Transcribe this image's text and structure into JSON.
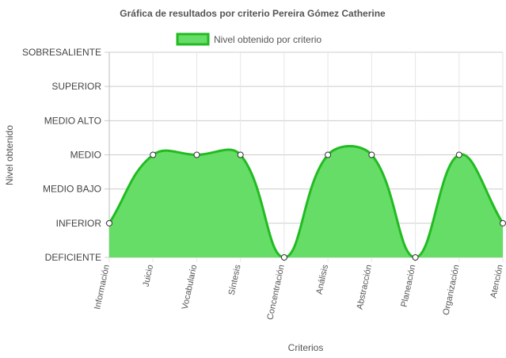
{
  "chart_data": {
    "type": "area",
    "title": "Gráfica de resultados por criterio Pereira Gómez Catherine",
    "xlabel": "Criterios",
    "ylabel": "Nivel obtenido",
    "y_levels": [
      "DEFICIENTE",
      "INFERIOR",
      "MEDIO BAJO",
      "MEDIO",
      "MEDIO ALTO",
      "SUPERIOR",
      "SOBRESALIENTE"
    ],
    "categories": [
      "Información",
      "Juicio",
      "Vocabulario",
      "Síntesis",
      "Concentración",
      "Análisis",
      "Abstracción",
      "Planeación",
      "Organización",
      "Atención"
    ],
    "series": [
      {
        "name": "Nivel obtenido por criterio",
        "values": [
          "INFERIOR",
          "MEDIO",
          "MEDIO",
          "MEDIO",
          "DEFICIENTE",
          "MEDIO",
          "MEDIO",
          "DEFICIENTE",
          "MEDIO",
          "INFERIOR"
        ],
        "fill_color": "#66dd66",
        "line_color": "#22bb22"
      }
    ],
    "grid": true,
    "legend_position": "top-center"
  }
}
